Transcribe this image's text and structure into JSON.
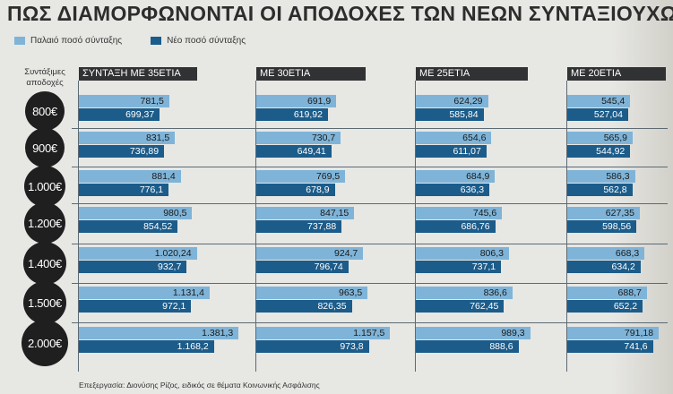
{
  "title": "ΠΩΣ ΔΙΑΜΟΡΦΩΝΟΝΤΑΙ ΟΙ ΑΠΟΔΟΧΕΣ ΤΩΝ ΝΕΩΝ ΣΥΝΤΑΞΙΟΥΧΩΝ",
  "legend": {
    "old": "Παλαιό ποσό σύνταξης",
    "new": "Νέο ποσό σύνταξης"
  },
  "row_header": "Συντάξιμες αποδοχές",
  "credit": "Επεξεργασία: Διονύσης Ρίζος, ειδικός σε θέματα Κοινωνικής Ασφάλισης",
  "colors": {
    "old": "#7fb4d8",
    "new": "#1c5c8a",
    "header": "#303233",
    "circle": "#1f1f1f"
  },
  "chart_data": {
    "type": "bar",
    "orientation": "horizontal",
    "categories": [
      "800€",
      "900€",
      "1.000€",
      "1.200€",
      "1.400€",
      "1.500€",
      "2.000€"
    ],
    "panels": [
      {
        "title": "ΣΥΝΤΑΞΗ ΜΕ 35ΕΤΙΑ",
        "series": [
          {
            "name": "Παλαιό ποσό σύνταξης",
            "values": [
              781.5,
              831.5,
              881.4,
              980.5,
              1020.24,
              1131.4,
              1381.3
            ],
            "labels": [
              "781,5",
              "831,5",
              "881,4",
              "980,5",
              "1.020,24",
              "1.131,4",
              "1.381,3"
            ]
          },
          {
            "name": "Νέο ποσό σύνταξης",
            "values": [
              699.37,
              736.89,
              776.1,
              854.52,
              932.7,
              972.1,
              1168.2
            ],
            "labels": [
              "699,37",
              "736,89",
              "776,1",
              "854,52",
              "932,7",
              "972,1",
              "1.168,2"
            ]
          }
        ]
      },
      {
        "title": "ΜΕ 30ΕΤΙΑ",
        "series": [
          {
            "name": "Παλαιό ποσό σύνταξης",
            "values": [
              691.9,
              730.7,
              769.5,
              847.15,
              924.7,
              963.5,
              1157.5
            ],
            "labels": [
              "691,9",
              "730,7",
              "769,5",
              "847,15",
              "924,7",
              "963,5",
              "1.157,5"
            ]
          },
          {
            "name": "Νέο ποσό σύνταξης",
            "values": [
              619.92,
              649.41,
              678.9,
              737.88,
              796.74,
              826.35,
              973.8
            ],
            "labels": [
              "619,92",
              "649,41",
              "678,9",
              "737,88",
              "796,74",
              "826,35",
              "973,8"
            ]
          }
        ]
      },
      {
        "title": "ΜΕ 25ΕΤΙΑ",
        "series": [
          {
            "name": "Παλαιό ποσό σύνταξης",
            "values": [
              624.29,
              654.6,
              684.9,
              745.6,
              806.3,
              836.6,
              989.3
            ],
            "labels": [
              "624,29",
              "654,6",
              "684,9",
              "745,6",
              "806,3",
              "836,6",
              "989,3"
            ]
          },
          {
            "name": "Νέο ποσό σύνταξης",
            "values": [
              585.84,
              611.07,
              636.3,
              686.76,
              737.1,
              762.45,
              888.6
            ],
            "labels": [
              "585,84",
              "611,07",
              "636,3",
              "686,76",
              "737,1",
              "762,45",
              "888,6"
            ]
          }
        ]
      },
      {
        "title": "ΜΕ 20ΕΤΙΑ",
        "series": [
          {
            "name": "Παλαιό ποσό σύνταξης",
            "values": [
              545.4,
              565.9,
              586.3,
              627.35,
              668.3,
              688.7,
              791.18
            ],
            "labels": [
              "545,4",
              "565,9",
              "586,3",
              "627,35",
              "668,3",
              "688,7",
              "791,18"
            ]
          },
          {
            "name": "Νέο ποσό σύνταξης",
            "values": [
              527.04,
              544.92,
              562.8,
              598.56,
              634.2,
              652.2,
              741.6
            ],
            "labels": [
              "527,04",
              "544,92",
              "562,8",
              "598,56",
              "634,2",
              "652,2",
              "741,6"
            ]
          }
        ]
      }
    ]
  }
}
